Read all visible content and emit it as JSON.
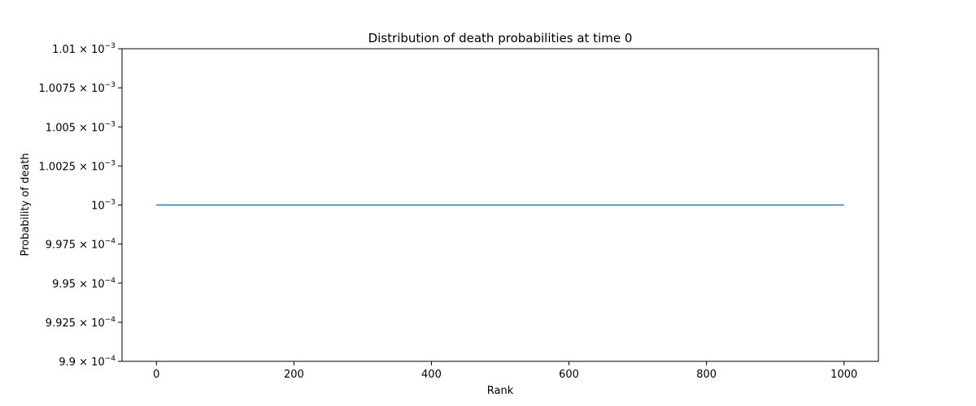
{
  "chart_data": {
    "type": "line",
    "title": "Distribution of death probabilities at time 0",
    "xlabel": "Rank",
    "ylabel": "Probability of death",
    "xlim": [
      -50,
      1050
    ],
    "ylim": [
      0.00099,
      0.00101
    ],
    "grid": false,
    "legend": "none",
    "x_ticks": [
      {
        "value": 0,
        "label": "0"
      },
      {
        "value": 200,
        "label": "200"
      },
      {
        "value": 400,
        "label": "400"
      },
      {
        "value": 600,
        "label": "600"
      },
      {
        "value": 800,
        "label": "800"
      },
      {
        "value": 1000,
        "label": "1000"
      }
    ],
    "y_ticks": [
      {
        "value": 0.00101,
        "mantissa": "1.01",
        "exponent": "−3"
      },
      {
        "value": 0.0010075,
        "mantissa": "1.0075",
        "exponent": "−3"
      },
      {
        "value": 0.001005,
        "mantissa": "1.005",
        "exponent": "−3"
      },
      {
        "value": 0.0010025,
        "mantissa": "1.0025",
        "exponent": "−3"
      },
      {
        "value": 0.001,
        "mantissa": "",
        "exponent": "−3"
      },
      {
        "value": 0.0009975,
        "mantissa": "9.975",
        "exponent": "−4"
      },
      {
        "value": 0.000995,
        "mantissa": "9.95",
        "exponent": "−4"
      },
      {
        "value": 0.0009925,
        "mantissa": "9.925",
        "exponent": "−4"
      },
      {
        "value": 0.00099,
        "mantissa": "9.9",
        "exponent": "−4"
      }
    ],
    "series": [
      {
        "color": "#1f77b4",
        "x": [
          0,
          1000
        ],
        "y": [
          0.001,
          0.001
        ]
      }
    ]
  }
}
